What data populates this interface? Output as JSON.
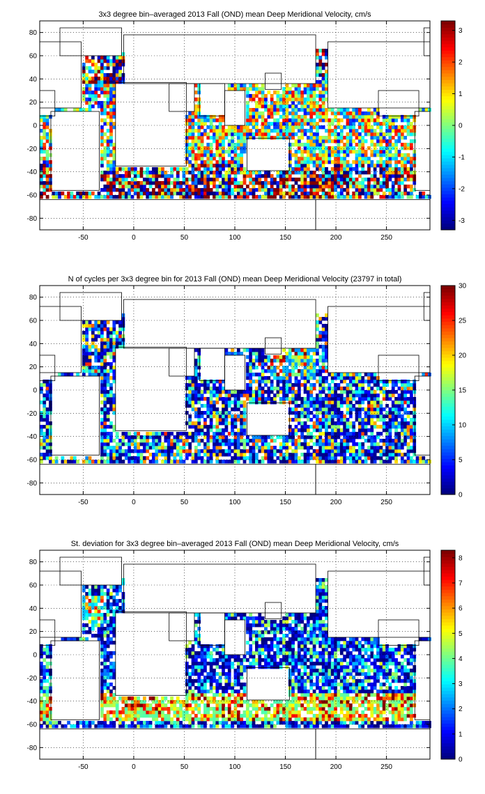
{
  "chart_data": [
    {
      "type": "heatmap",
      "title": "3x3 degree bin–averaged 2013 Fall (OND) mean Deep Meridional Velocity, cm/s",
      "xlabel": "",
      "ylabel": "",
      "xlim": [
        -93,
        293
      ],
      "ylim": [
        -90,
        90
      ],
      "xticks": [
        -50,
        0,
        50,
        100,
        150,
        200,
        250
      ],
      "yticks": [
        -80,
        -60,
        -40,
        -20,
        0,
        20,
        40,
        60,
        80
      ],
      "colorbar": {
        "colormap": "jet",
        "range": [
          -3.3,
          3.3
        ],
        "ticks": [
          -3,
          -2,
          -1,
          0,
          1,
          2,
          3
        ]
      },
      "grid": true,
      "bin_size_deg": 3,
      "pattern": "signed"
    },
    {
      "type": "heatmap",
      "title": "N of cycles per 3x3 degree bin for 2013 Fall (OND) mean Deep Meridional Velocity (23797 in total)",
      "xlabel": "",
      "ylabel": "",
      "xlim": [
        -93,
        293
      ],
      "ylim": [
        -90,
        90
      ],
      "xticks": [
        -50,
        0,
        50,
        100,
        150,
        200,
        250
      ],
      "yticks": [
        -80,
        -60,
        -40,
        -20,
        0,
        20,
        40,
        60,
        80
      ],
      "colorbar": {
        "colormap": "jet",
        "range": [
          0,
          30
        ],
        "ticks": [
          0,
          5,
          10,
          15,
          20,
          25,
          30
        ]
      },
      "grid": true,
      "bin_size_deg": 3,
      "total_cycles": 23797,
      "pattern": "count"
    },
    {
      "type": "heatmap",
      "title": "St. deviation for 3x3 degree bin–averaged 2013 Fall (OND) mean Deep Meridional Velocity, cm/s",
      "xlabel": "",
      "ylabel": "",
      "xlim": [
        -93,
        293
      ],
      "ylim": [
        -90,
        90
      ],
      "xticks": [
        -50,
        0,
        50,
        100,
        150,
        200,
        250
      ],
      "yticks": [
        -80,
        -60,
        -40,
        -20,
        0,
        20,
        40,
        60,
        80
      ],
      "colorbar": {
        "colormap": "jet",
        "range": [
          0,
          8.3
        ],
        "ticks": [
          0,
          1,
          2,
          3,
          4,
          5,
          6,
          7,
          8
        ]
      },
      "grid": true,
      "bin_size_deg": 3,
      "pattern": "std"
    }
  ]
}
